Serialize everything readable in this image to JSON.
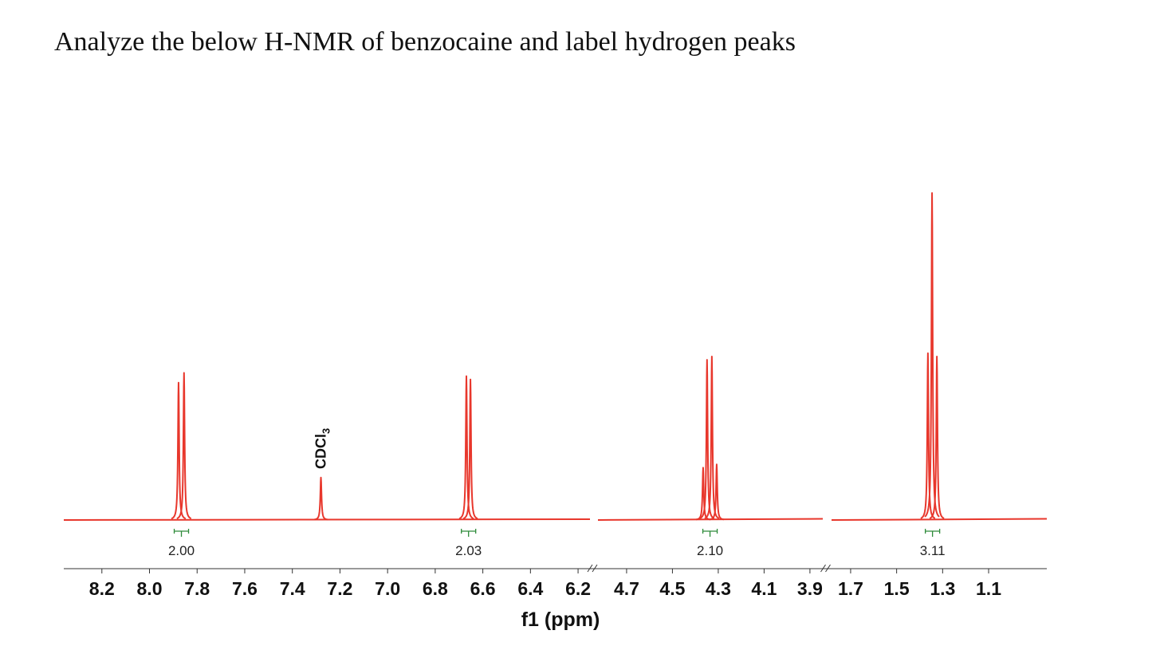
{
  "chart_data": {
    "type": "nmr",
    "title": "Analyze the below H-NMR of benzocaine and label hydrogen peaks",
    "xlabel": "f1 (ppm)",
    "color": "#e8372c",
    "integral_color": "#2e8b3a",
    "ylim": [
      0,
      100
    ],
    "segments": [
      {
        "xlim": [
          8.36,
          6.15
        ],
        "xticks": [
          8.2,
          {
            "value": 8.0,
            "label": "8.0"
          },
          7.8,
          7.6,
          7.4,
          7.2,
          {
            "value": 7.0,
            "label": "7.0"
          },
          6.8,
          6.6,
          6.4,
          6.2
        ],
        "peaks": {
          "x": [
            7.878,
            7.855,
            7.28,
            6.669,
            6.652
          ],
          "values": [
            42,
            45,
            13,
            44,
            43
          ]
        }
      },
      {
        "xlim": [
          4.825,
          3.844
        ],
        "xticks": [
          4.7,
          4.5,
          4.3,
          4.1,
          3.9
        ],
        "peaks": {
          "x": [
            4.366,
            4.349,
            4.328,
            4.307
          ],
          "values": [
            16,
            49,
            50,
            17
          ]
        }
      },
      {
        "xlim": [
          1.783,
          0.847
        ],
        "xticks": [
          1.7,
          1.5,
          1.3,
          1.1
        ],
        "peaks": {
          "x": [
            1.364,
            1.346,
            1.325
          ],
          "values": [
            51,
            100,
            50
          ]
        }
      }
    ],
    "integrals": {
      "segment": [
        0,
        0,
        1,
        2
      ],
      "x": [
        7.866,
        6.66,
        4.336,
        1.344
      ],
      "values": [
        2.0,
        2.03,
        2.1,
        3.11
      ],
      "value_labels": [
        "2.00",
        "2.03",
        "2.10",
        "3.11"
      ]
    },
    "annotations": [
      {
        "segment": 0,
        "x": 7.28,
        "text": "CDCl",
        "subscript": "3"
      }
    ]
  }
}
